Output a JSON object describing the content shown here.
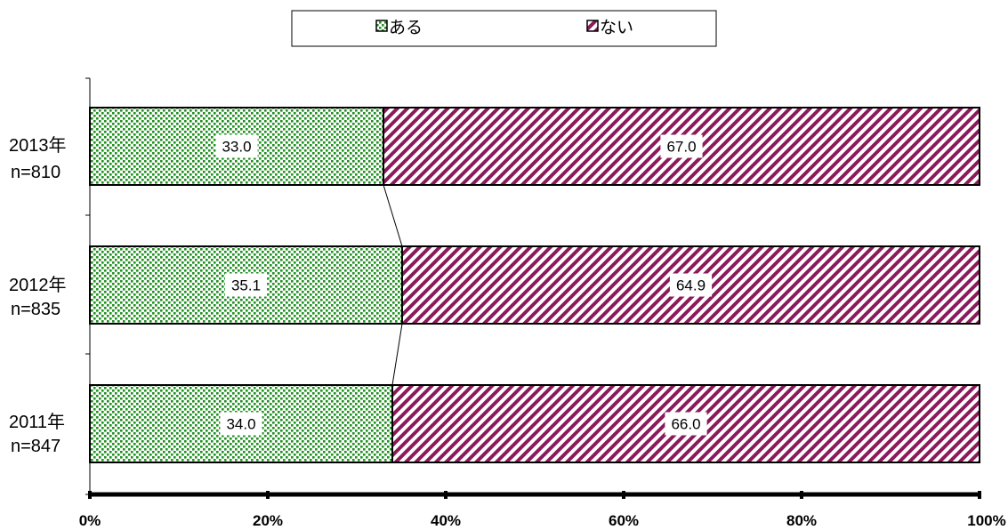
{
  "chart_data": {
    "type": "bar",
    "orientation": "horizontal",
    "stacked": "percent",
    "categories": [
      {
        "year": "2013年",
        "n": "n=810"
      },
      {
        "year": "2012年",
        "n": "n=835"
      },
      {
        "year": "2011年",
        "n": "n=847"
      }
    ],
    "series": [
      {
        "name": "ある",
        "values": [
          33.0,
          35.1,
          34.0
        ],
        "color": "#1f8f1f",
        "pattern": "dots"
      },
      {
        "name": "ない",
        "values": [
          67.0,
          64.9,
          66.0
        ],
        "color": "#8b1a5a",
        "pattern": "diagonal-stripes"
      }
    ],
    "data_labels": [
      [
        "33.0",
        "35.1",
        "34.0"
      ],
      [
        "67.0",
        "64.9",
        "66.0"
      ]
    ],
    "x_ticks": [
      "0%",
      "20%",
      "40%",
      "60%",
      "80%",
      "100%"
    ],
    "xlim": [
      0,
      100
    ],
    "legend": "top",
    "series_lines": true,
    "grid": false
  }
}
